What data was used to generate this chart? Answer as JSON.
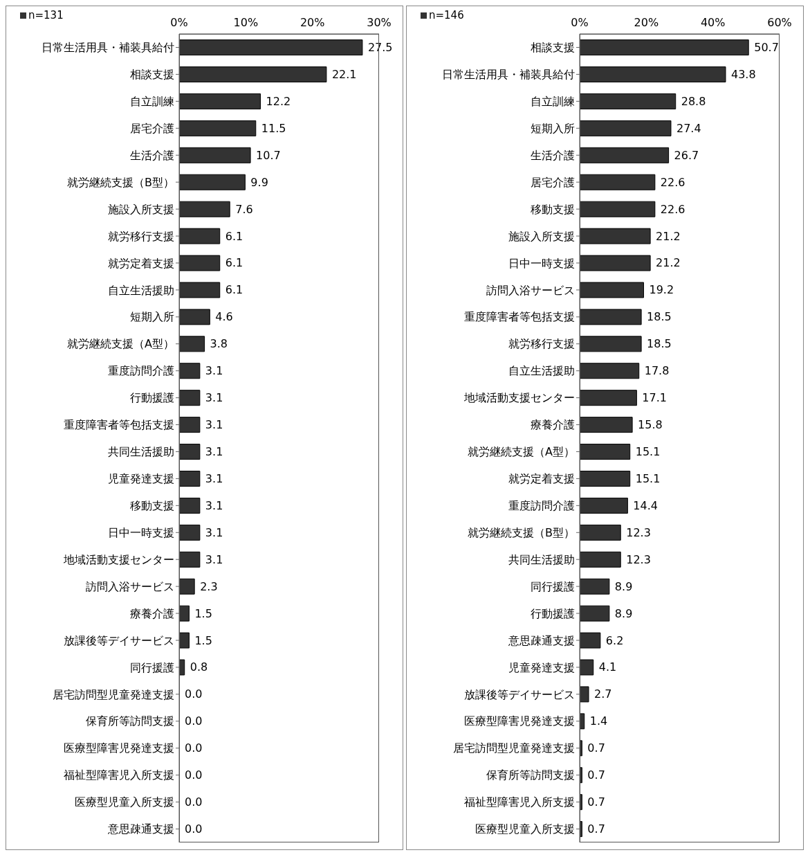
{
  "chart_data": [
    {
      "type": "bar",
      "orientation": "horizontal",
      "legend": "top left",
      "grid": false,
      "categories": [
        "日常生活用具・補装具給付",
        "相談支援",
        "自立訓練",
        "居宅介護",
        "生活介護",
        "就労継続支援（B型）",
        "施設入所支援",
        "就労移行支援",
        "就労定着支援",
        "自立生活援助",
        "短期入所",
        "就労継続支援（A型）",
        "重度訪問介護",
        "行動援護",
        "重度障害者等包括支援",
        "共同生活援助",
        "児童発達支援",
        "移動支援",
        "日中一時支援",
        "地域活動支援センター",
        "訪問入浴サービス",
        "療養介護",
        "放課後等デイサービス",
        "同行援護",
        "居宅訪問型児童発達支援",
        "保育所等訪問支援",
        "医療型障害児発達支援",
        "福祉型障害児入所支援",
        "医療型児童入所支援",
        "意思疎通支援"
      ],
      "xlim": [
        0,
        30
      ],
      "xticks": [
        {
          "value": 0,
          "label": "0%"
        },
        {
          "value": 10,
          "label": "10%"
        },
        {
          "value": 20,
          "label": "20%"
        },
        {
          "value": 30,
          "label": "30%"
        }
      ],
      "series": [
        {
          "name": "n=131",
          "color": "#333333",
          "values": [
            27.5,
            22.1,
            12.2,
            11.5,
            10.7,
            9.9,
            7.6,
            6.1,
            6.1,
            6.1,
            4.6,
            3.8,
            3.1,
            3.1,
            3.1,
            3.1,
            3.1,
            3.1,
            3.1,
            3.1,
            2.3,
            1.5,
            1.5,
            0.8,
            0,
            0,
            0,
            0,
            0,
            0
          ],
          "value_labels": [
            "27.5",
            "22.1",
            "12.2",
            "11.5",
            "10.7",
            "9.9",
            "7.6",
            "6.1",
            "6.1",
            "6.1",
            "4.6",
            "3.8",
            "3.1",
            "3.1",
            "3.1",
            "3.1",
            "3.1",
            "3.1",
            "3.1",
            "3.1",
            "2.3",
            "1.5",
            "1.5",
            "0.8",
            "0.0",
            "0.0",
            "0.0",
            "0.0",
            "0.0",
            "0.0"
          ]
        }
      ]
    },
    {
      "type": "bar",
      "orientation": "horizontal",
      "legend": "top left",
      "grid": false,
      "categories": [
        "相談支援",
        "日常生活用具・補装具給付",
        "自立訓練",
        "短期入所",
        "生活介護",
        "居宅介護",
        "移動支援",
        "施設入所支援",
        "日中一時支援",
        "訪問入浴サービス",
        "重度障害者等包括支援",
        "就労移行支援",
        "自立生活援助",
        "地域活動支援センター",
        "療養介護",
        "就労継続支援（A型）",
        "就労定着支援",
        "重度訪問介護",
        "就労継続支援（B型）",
        "共同生活援助",
        "同行援護",
        "行動援護",
        "意思疎通支援",
        "児童発達支援",
        "放課後等デイサービス",
        "医療型障害児発達支援",
        "居宅訪問型児童発達支援",
        "保育所等訪問支援",
        "福祉型障害児入所支援",
        "医療型児童入所支援"
      ],
      "xlim": [
        0,
        60
      ],
      "xticks": [
        {
          "value": 0,
          "label": "0%"
        },
        {
          "value": 20,
          "label": "20%"
        },
        {
          "value": 40,
          "label": "40%"
        },
        {
          "value": 60,
          "label": "60%"
        }
      ],
      "series": [
        {
          "name": "n=146",
          "color": "#333333",
          "values": [
            50.7,
            43.8,
            28.8,
            27.4,
            26.7,
            22.6,
            22.6,
            21.2,
            21.2,
            19.2,
            18.5,
            18.5,
            17.8,
            17.1,
            15.8,
            15.1,
            15.1,
            14.4,
            12.3,
            12.3,
            8.9,
            8.9,
            6.2,
            4.1,
            2.7,
            1.4,
            0.7,
            0.7,
            0.7,
            0.7
          ],
          "value_labels": [
            "50.7",
            "43.8",
            "28.8",
            "27.4",
            "26.7",
            "22.6",
            "22.6",
            "21.2",
            "21.2",
            "19.2",
            "18.5",
            "18.5",
            "17.8",
            "17.1",
            "15.8",
            "15.1",
            "15.1",
            "14.4",
            "12.3",
            "12.3",
            "8.9",
            "8.9",
            "6.2",
            "4.1",
            "2.7",
            "1.4",
            "0.7",
            "0.7",
            "0.7",
            "0.7"
          ]
        }
      ]
    }
  ]
}
